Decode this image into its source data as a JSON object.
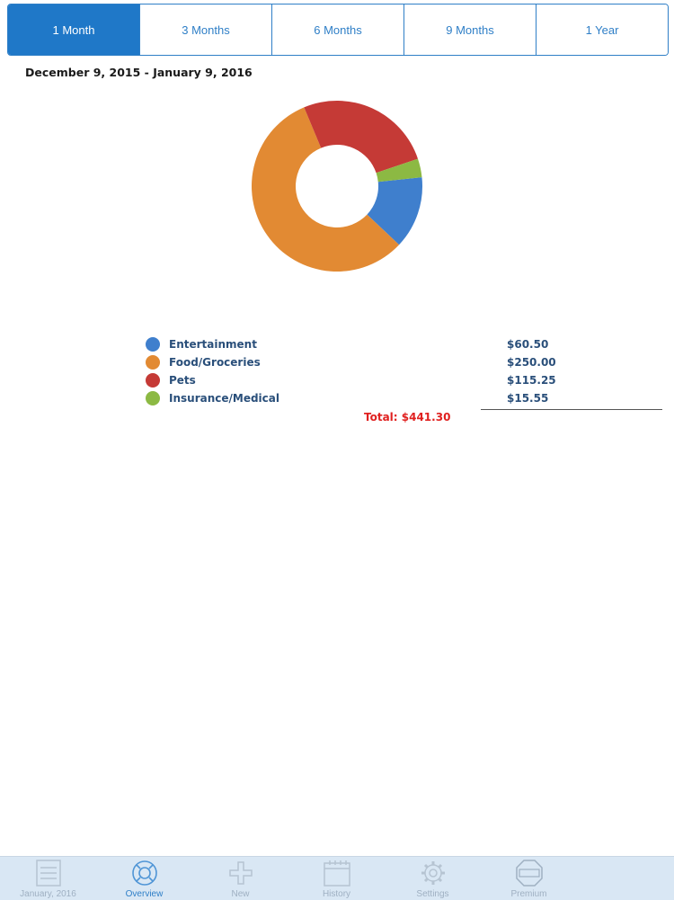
{
  "segments": [
    {
      "label": "1 Month",
      "active": true
    },
    {
      "label": "3 Months",
      "active": false
    },
    {
      "label": "6 Months",
      "active": false
    },
    {
      "label": "9 Months",
      "active": false
    },
    {
      "label": "1 Year",
      "active": false
    }
  ],
  "date_range": "December 9, 2015 - January 9, 2016",
  "chart_data": {
    "type": "pie",
    "donut": true,
    "categories": [
      "Entertainment",
      "Food/Groceries",
      "Pets",
      "Insurance/Medical"
    ],
    "values": [
      60.5,
      250.0,
      115.25,
      15.55
    ],
    "colors": [
      "#3f7fcd",
      "#e28a33",
      "#c53a36",
      "#8cb943"
    ],
    "legend_placement": "below"
  },
  "legend": [
    {
      "label": "Entertainment",
      "amount": "$60.50",
      "color": "#3f7fcd"
    },
    {
      "label": "Food/Groceries",
      "amount": "$250.00",
      "color": "#e28a33"
    },
    {
      "label": "Pets",
      "amount": "$115.25",
      "color": "#c53a36"
    },
    {
      "label": "Insurance/Medical",
      "amount": "$15.55",
      "color": "#8cb943"
    }
  ],
  "total_text": "Total:  $441.30",
  "tabbar": {
    "items": [
      {
        "label": "January, 2016",
        "icon": "notepad-icon",
        "active": false
      },
      {
        "label": "Overview",
        "icon": "lifebuoy-icon",
        "active": true
      },
      {
        "label": "New",
        "icon": "plus-icon",
        "active": false
      },
      {
        "label": "History",
        "icon": "calendar-icon",
        "active": false
      },
      {
        "label": "Settings",
        "icon": "gear-icon",
        "active": false
      },
      {
        "label": "Premium",
        "icon": "premium-badge-icon",
        "active": false
      }
    ]
  }
}
